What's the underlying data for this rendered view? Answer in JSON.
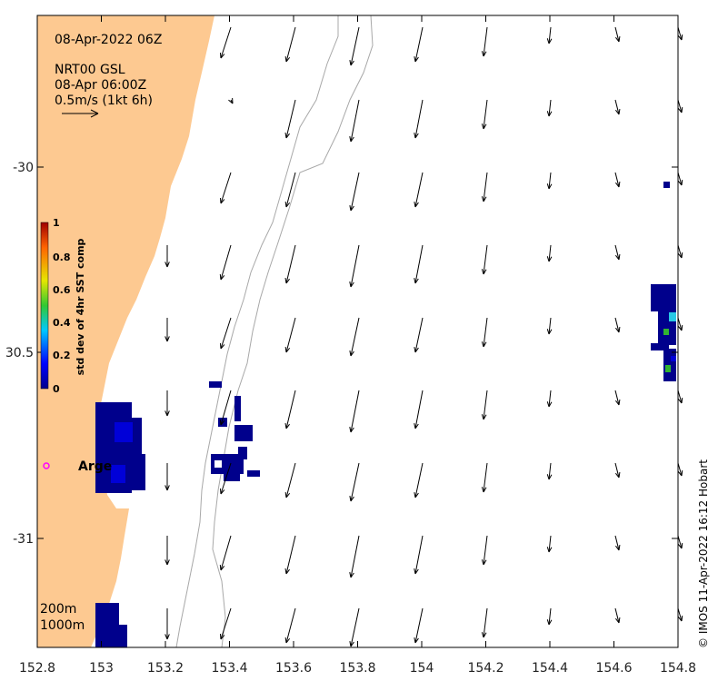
{
  "map": {
    "title": "08-Apr-2022 06Z",
    "product_line1": "NRT00 GSL",
    "product_line2": "08-Apr 06:00Z",
    "scale_label": "0.5m/s (1kt 6h)",
    "credit": "© IMOS 11-Apr-2022 16:12 Hobart",
    "x_ticks": [
      "152.8",
      "153",
      "153.2",
      "153.4",
      "153.6",
      "153.8",
      "154",
      "154.2",
      "154.4",
      "154.6",
      "154.8"
    ],
    "y_ticks": [
      "-30",
      "30.5",
      "-31"
    ],
    "colorbar": {
      "label": "std dev of 4hr SST comp",
      "ticks": [
        "1",
        "0.8",
        "0.6",
        "0.4",
        "0.2",
        "0"
      ]
    },
    "place_label": "Arge",
    "bathymetry": [
      "200m",
      "1000m"
    ],
    "colors": {
      "land": "#fdc991",
      "cell_dark": "#00008c",
      "cell_mid": "#0000d8",
      "cell_cyan": "#28c8e6",
      "cell_green": "#32b432",
      "marker": "#ff00ff"
    }
  }
}
